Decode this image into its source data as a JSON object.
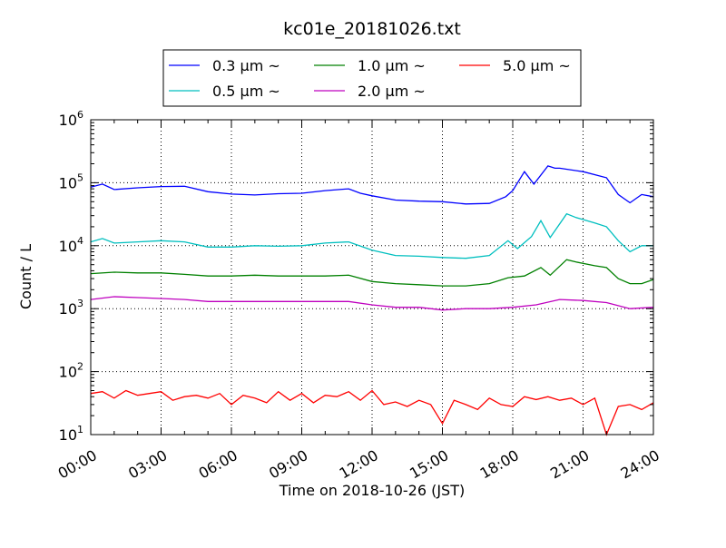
{
  "chart_data": {
    "type": "line",
    "title": "kc01e_20181026.txt",
    "xlabel": "Time on 2018-10-26 (JST)",
    "ylabel": "Count / L",
    "xlim_hours": [
      0,
      24
    ],
    "ylim": [
      10,
      1000000
    ],
    "yscale": "log",
    "grid": true,
    "legend_position": "top-center-outside",
    "x_tick_labels": [
      "00:00",
      "03:00",
      "06:00",
      "09:00",
      "12:00",
      "15:00",
      "18:00",
      "21:00",
      "24:00"
    ],
    "y_tick_labels": [
      {
        "base": "10",
        "exp": "1"
      },
      {
        "base": "10",
        "exp": "2"
      },
      {
        "base": "10",
        "exp": "3"
      },
      {
        "base": "10",
        "exp": "4"
      },
      {
        "base": "10",
        "exp": "5"
      },
      {
        "base": "10",
        "exp": "6"
      }
    ],
    "series": [
      {
        "name": "0.3 μm ~",
        "color": "#0000ff",
        "x": [
          0,
          0.5,
          1,
          2,
          3,
          4,
          5,
          6,
          7,
          8,
          9,
          10,
          11,
          11.5,
          12,
          13,
          14,
          15,
          16,
          17,
          17.7,
          18,
          18.5,
          18.9,
          19.5,
          19.8,
          20,
          21,
          22,
          22.5,
          23,
          23.5,
          24
        ],
        "y": [
          85000,
          95000,
          78000,
          83000,
          87000,
          88000,
          72000,
          66000,
          64000,
          67000,
          68000,
          75000,
          80000,
          68000,
          62000,
          53000,
          51000,
          50000,
          46000,
          47000,
          60000,
          75000,
          150000,
          95000,
          185000,
          170000,
          170000,
          150000,
          120000,
          65000,
          48000,
          65000,
          60000
        ]
      },
      {
        "name": "0.5 μm ~",
        "color": "#00bfbf",
        "x": [
          0,
          0.5,
          1,
          2,
          3,
          4,
          5,
          6,
          7,
          8,
          9,
          10,
          11,
          12,
          13,
          14,
          15,
          16,
          17,
          17.8,
          18.2,
          18.8,
          19.2,
          19.6,
          20.3,
          20.7,
          21.5,
          22,
          22.5,
          23,
          23.5,
          24
        ],
        "y": [
          11500,
          13000,
          11000,
          11500,
          12000,
          11500,
          9500,
          9500,
          10000,
          9800,
          10000,
          11000,
          11500,
          8500,
          7000,
          6800,
          6500,
          6300,
          7000,
          12000,
          9000,
          14000,
          25000,
          13500,
          32000,
          28000,
          23000,
          20000,
          12000,
          8000,
          10000,
          10000
        ]
      },
      {
        "name": "1.0 μm ~",
        "color": "#008000",
        "x": [
          0,
          1,
          2,
          3,
          4,
          5,
          6,
          7,
          8,
          9,
          10,
          11,
          12,
          13,
          14,
          15,
          16,
          17,
          17.8,
          18.5,
          19.2,
          19.6,
          20.3,
          20.7,
          21.5,
          22,
          22.5,
          23,
          23.5,
          24
        ],
        "y": [
          3600,
          3800,
          3700,
          3700,
          3500,
          3300,
          3300,
          3400,
          3300,
          3300,
          3300,
          3400,
          2700,
          2500,
          2400,
          2300,
          2300,
          2500,
          3100,
          3300,
          4500,
          3400,
          6000,
          5500,
          4800,
          4500,
          3000,
          2500,
          2500,
          2900
        ]
      },
      {
        "name": "2.0 μm ~",
        "color": "#bf00bf",
        "x": [
          0,
          1,
          2,
          3,
          4,
          5,
          6,
          7,
          8,
          9,
          10,
          11,
          12,
          13,
          14,
          15,
          16,
          17,
          18,
          19,
          20,
          21,
          22,
          23,
          24
        ],
        "y": [
          1400,
          1550,
          1500,
          1450,
          1400,
          1300,
          1300,
          1300,
          1300,
          1300,
          1300,
          1300,
          1150,
          1050,
          1050,
          950,
          1000,
          1000,
          1050,
          1150,
          1400,
          1350,
          1250,
          1000,
          1050
        ]
      },
      {
        "name": "5.0 μm ~",
        "color": "#ff0000",
        "x": [
          0,
          0.5,
          1,
          1.5,
          2,
          2.5,
          3,
          3.5,
          4,
          4.5,
          5,
          5.5,
          6,
          6.5,
          7,
          7.5,
          8,
          8.5,
          9,
          9.5,
          10,
          10.5,
          11,
          11.5,
          12,
          12.5,
          13,
          13.5,
          14,
          14.5,
          15,
          15.5,
          16,
          16.5,
          17,
          17.5,
          18,
          18.5,
          19,
          19.5,
          20,
          20.5,
          21,
          21.5,
          22,
          22.5,
          23,
          23.5,
          24
        ],
        "y": [
          45,
          48,
          38,
          50,
          42,
          45,
          48,
          35,
          40,
          42,
          38,
          45,
          30,
          42,
          38,
          32,
          48,
          35,
          45,
          32,
          42,
          40,
          48,
          35,
          50,
          30,
          33,
          28,
          35,
          30,
          15,
          35,
          30,
          25,
          38,
          30,
          28,
          40,
          36,
          40,
          35,
          38,
          30,
          38,
          10,
          28,
          30,
          25,
          32
        ]
      }
    ]
  }
}
